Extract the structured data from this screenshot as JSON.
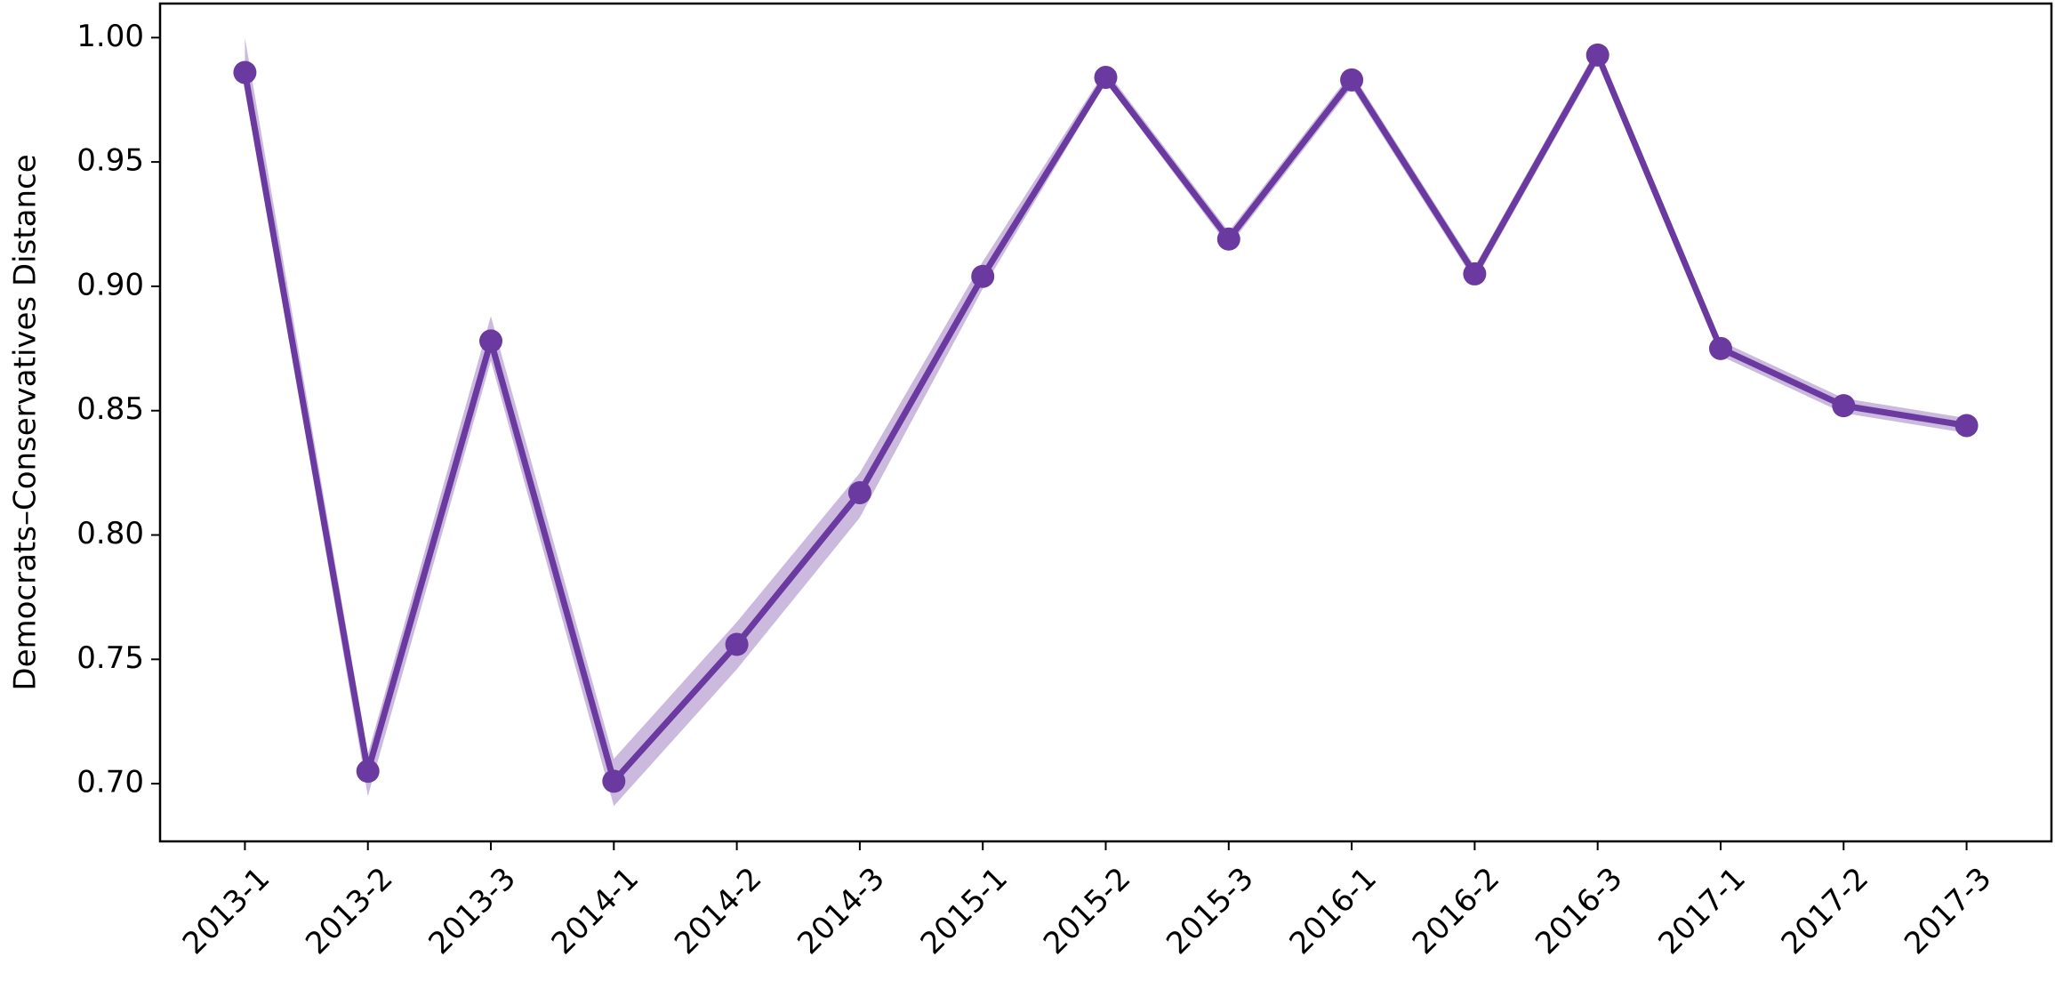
{
  "chart_data": {
    "type": "line",
    "y_label": "Democrats–Conservatives Distance",
    "categories": [
      "2013-1",
      "2013-2",
      "2013-3",
      "2014-1",
      "2014-2",
      "2014-3",
      "2015-1",
      "2015-2",
      "2015-3",
      "2016-1",
      "2016-2",
      "2016-3",
      "2017-1",
      "2017-2",
      "2017-3"
    ],
    "series": [
      {
        "color": "#6b3aa0",
        "values": [
          0.986,
          0.705,
          0.878,
          0.701,
          0.756,
          0.817,
          0.904,
          0.984,
          0.919,
          0.983,
          0.905,
          0.993,
          0.875,
          0.852,
          0.844
        ],
        "lower": [
          0.982,
          0.695,
          0.87,
          0.691,
          0.746,
          0.807,
          0.899,
          0.982,
          0.916,
          0.98,
          0.902,
          0.99,
          0.872,
          0.849,
          0.841
        ],
        "upper": [
          1.0,
          0.712,
          0.888,
          0.71,
          0.765,
          0.825,
          0.91,
          0.987,
          0.922,
          0.986,
          0.908,
          0.996,
          0.878,
          0.855,
          0.847
        ]
      }
    ],
    "ylim": [
      0.6768,
      1.0137
    ],
    "yticks": [
      {
        "value": 0.7,
        "label": "0.70"
      },
      {
        "value": 0.75,
        "label": "0.75"
      },
      {
        "value": 0.8,
        "label": "0.80"
      },
      {
        "value": 0.85,
        "label": "0.85"
      },
      {
        "value": 0.9,
        "label": "0.90"
      },
      {
        "value": 0.95,
        "label": "0.95"
      },
      {
        "value": 1.0,
        "label": "1.00"
      }
    ],
    "grid": false
  }
}
